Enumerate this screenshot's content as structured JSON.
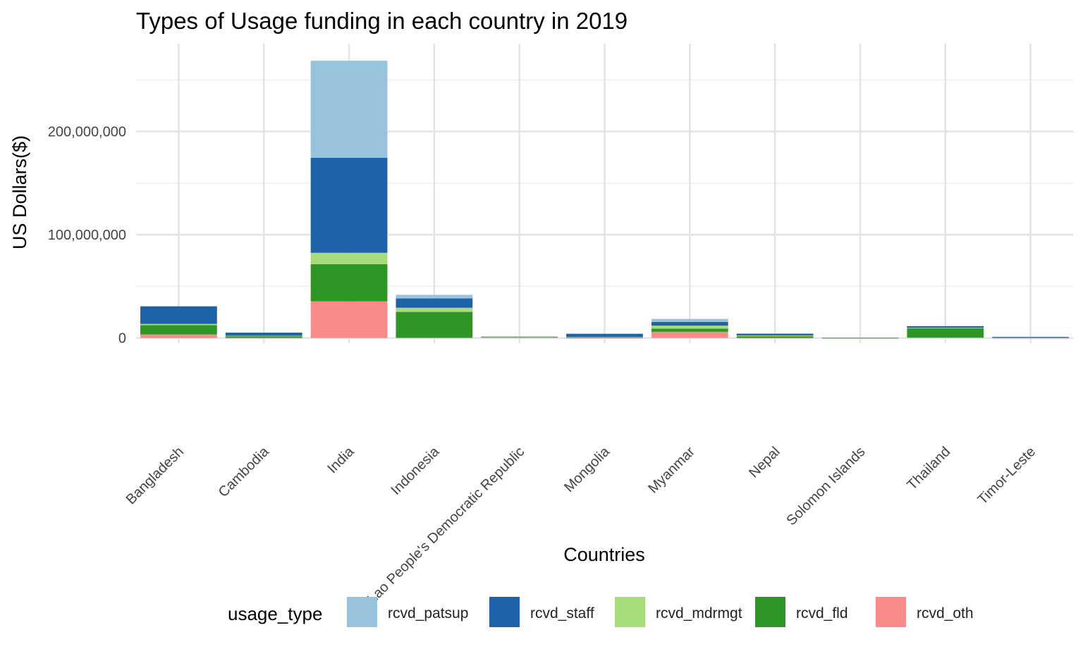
{
  "chart_data": {
    "type": "bar",
    "stacked": true,
    "title": "Types of Usage funding in each country in 2019",
    "xlabel": "Countries",
    "ylabel": "US Dollars($)",
    "ylim": [
      -5000000,
      285000000
    ],
    "y_ticks": [
      0,
      100000000,
      200000000
    ],
    "y_tick_labels": [
      "0",
      "100,000,000",
      "200,000,000"
    ],
    "grid": true,
    "legend_position": "bottom",
    "legend_title": "usage_type",
    "categories": [
      "Bangladesh",
      "Cambodia",
      "India",
      "Indonesia",
      "Lao People's Democratic Republic",
      "Mongolia",
      "Myanmar",
      "Nepal",
      "Solomon Islands",
      "Thailand",
      "Timor-Leste"
    ],
    "series": [
      {
        "name": "rcvd_oth",
        "color": "#fb8a8b",
        "values": [
          3500000,
          200000,
          35500000,
          300000,
          1000000,
          200000,
          6000000,
          200000,
          50000,
          500000,
          100000
        ]
      },
      {
        "name": "rcvd_fld",
        "color": "#2d9624",
        "values": [
          9000000,
          1500000,
          36000000,
          25000000,
          200000,
          500000,
          3000000,
          1500000,
          50000,
          9000000,
          700000
        ]
      },
      {
        "name": "rcvd_mdrmgt",
        "color": "#a6dc7a",
        "values": [
          1200000,
          500000,
          11000000,
          4000000,
          100000,
          200000,
          3000000,
          800000,
          50000,
          500000,
          100000
        ]
      },
      {
        "name": "rcvd_staff",
        "color": "#1e63a7",
        "values": [
          17000000,
          3000000,
          92000000,
          9000000,
          200000,
          3200000,
          3500000,
          1800000,
          100000,
          1500000,
          100000
        ]
      },
      {
        "name": "rcvd_patsup",
        "color": "#97c3dc",
        "values": [
          0,
          0,
          94000000,
          3500000,
          100000,
          0,
          3000000,
          200000,
          300000,
          0,
          0
        ]
      }
    ],
    "legend_order": [
      "rcvd_patsup",
      "rcvd_staff",
      "rcvd_mdrmgt",
      "rcvd_fld",
      "rcvd_oth"
    ]
  }
}
